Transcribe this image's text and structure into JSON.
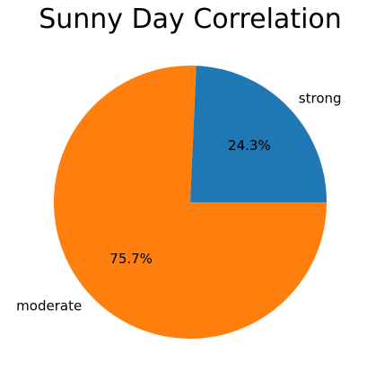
{
  "chart_data": {
    "type": "pie",
    "title": "Sunny Day Correlation",
    "slices": [
      {
        "label": "strong",
        "value": 24.3,
        "percent_label": "24.3%",
        "color": "#1f77b4"
      },
      {
        "label": "moderate",
        "value": 75.7,
        "percent_label": "75.7%",
        "color": "#ff7f0e"
      }
    ],
    "start_angle_deg": 0,
    "direction": "counterclockwise"
  }
}
